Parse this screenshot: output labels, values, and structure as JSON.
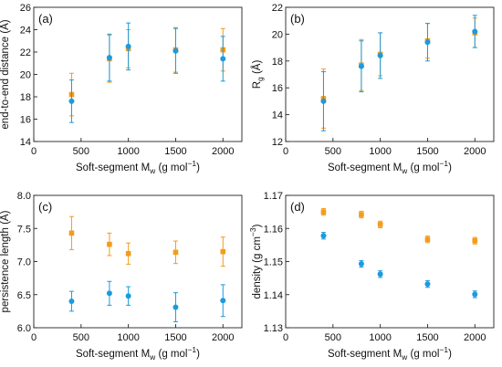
{
  "chart_data": [
    {
      "panel": "(a)",
      "type": "scatter",
      "xlabel_main": "Soft-segment M",
      "xlabel_sub": "w",
      "xlabel_unit_pre": " (g mol",
      "xlabel_unit_sup": "−1",
      "xlabel_unit_post": ")",
      "ylabel": "end-to-end distance (Å)",
      "xlim": [
        0,
        2200
      ],
      "ylim": [
        14,
        26
      ],
      "xticks": [
        0,
        500,
        1000,
        1500,
        2000
      ],
      "yticks": [
        14,
        16,
        18,
        20,
        22,
        24,
        26
      ],
      "series": [
        {
          "color": "#f39c1c",
          "x": [
            400,
            800,
            1000,
            1500,
            2000
          ],
          "y": [
            18.2,
            21.4,
            22.3,
            22.2,
            22.2
          ],
          "err": [
            1.9,
            2.1,
            1.7,
            2.0,
            1.9
          ]
        },
        {
          "color": "#1a9be0",
          "x": [
            400,
            800,
            1000,
            1500,
            2000
          ],
          "y": [
            17.6,
            21.5,
            22.5,
            22.1,
            21.4
          ],
          "err": [
            1.9,
            2.1,
            2.1,
            2.0,
            2.0
          ]
        }
      ]
    },
    {
      "panel": "(b)",
      "type": "scatter",
      "xlabel_main": "Soft-segment M",
      "xlabel_sub": "w",
      "xlabel_unit_pre": " (g mol",
      "xlabel_unit_sup": "−1",
      "xlabel_unit_post": ")",
      "ylabel_main": "R",
      "ylabel_sub": "g",
      "ylabel_unit": " (Å)",
      "xlim": [
        0,
        2200
      ],
      "ylim": [
        12,
        22
      ],
      "xticks": [
        0,
        500,
        1000,
        1500,
        2000
      ],
      "yticks": [
        12,
        14,
        16,
        18,
        20,
        22
      ],
      "series": [
        {
          "color": "#f39c1c",
          "x": [
            400,
            800,
            1000,
            1500,
            2000
          ],
          "y": [
            15.2,
            17.7,
            18.5,
            19.5,
            20.1
          ],
          "err": [
            2.2,
            1.9,
            1.6,
            1.3,
            1.1
          ]
        },
        {
          "color": "#1a9be0",
          "x": [
            400,
            800,
            1000,
            1500,
            2000
          ],
          "y": [
            15.0,
            17.6,
            18.4,
            19.4,
            20.2
          ],
          "err": [
            2.2,
            1.9,
            1.7,
            1.4,
            1.2
          ]
        }
      ]
    },
    {
      "panel": "(c)",
      "type": "scatter",
      "xlabel_main": "Soft-segment M",
      "xlabel_sub": "w",
      "xlabel_unit_pre": " (g mol",
      "xlabel_unit_sup": "−1",
      "xlabel_unit_post": ")",
      "ylabel": "persistence length (Å)",
      "xlim": [
        0,
        2200
      ],
      "ylim": [
        6.0,
        8.0
      ],
      "xticks": [
        0,
        500,
        1000,
        1500,
        2000
      ],
      "yticks": [
        6.0,
        6.5,
        7.0,
        7.5,
        8.0
      ],
      "ytick_decimals": 1,
      "series": [
        {
          "color": "#f39c1c",
          "x": [
            400,
            800,
            1000,
            1500,
            2000
          ],
          "y": [
            7.43,
            7.26,
            7.12,
            7.14,
            7.15
          ],
          "err": [
            0.25,
            0.17,
            0.16,
            0.17,
            0.22
          ]
        },
        {
          "color": "#1a9be0",
          "x": [
            400,
            800,
            1000,
            1500,
            2000
          ],
          "y": [
            6.4,
            6.52,
            6.48,
            6.31,
            6.41
          ],
          "err": [
            0.15,
            0.18,
            0.14,
            0.22,
            0.24
          ]
        }
      ]
    },
    {
      "panel": "(d)",
      "type": "scatter",
      "xlabel_main": "Soft-segment M",
      "xlabel_sub": "w",
      "xlabel_unit_pre": " (g mol",
      "xlabel_unit_sup": "−1",
      "xlabel_unit_post": ")",
      "ylabel_main": "density (g cm",
      "ylabel_sup": "−3",
      "ylabel_post": ")",
      "xlim": [
        0,
        2200
      ],
      "ylim": [
        1.13,
        1.17
      ],
      "xticks": [
        0,
        500,
        1000,
        1500,
        2000
      ],
      "yticks": [
        1.13,
        1.14,
        1.15,
        1.16,
        1.17
      ],
      "ytick_decimals": 2,
      "series": [
        {
          "color": "#f39c1c",
          "x": [
            400,
            800,
            1000,
            1500,
            2000
          ],
          "y": [
            1.165,
            1.1642,
            1.1612,
            1.1567,
            1.1563
          ],
          "err": [
            0.001,
            0.001,
            0.001,
            0.001,
            0.001
          ]
        },
        {
          "color": "#1a9be0",
          "x": [
            400,
            800,
            1000,
            1500,
            2000
          ],
          "y": [
            1.1578,
            1.1493,
            1.1462,
            1.1432,
            1.1401
          ],
          "err": [
            0.001,
            0.001,
            0.001,
            0.001,
            0.001
          ]
        }
      ]
    }
  ]
}
